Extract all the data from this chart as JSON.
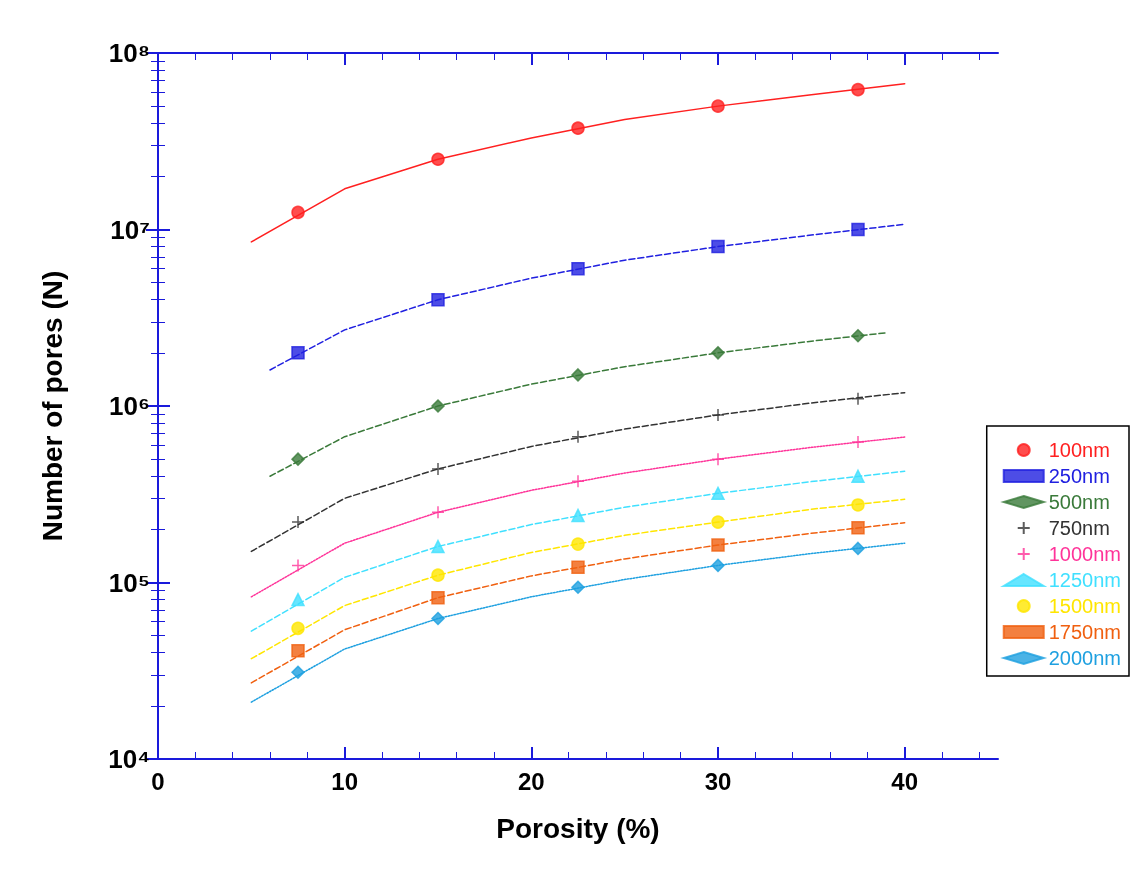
{
  "chart_data": {
    "type": "scatter",
    "xlabel": "Porosity (%)",
    "ylabel": "Number of pores (N)",
    "log": "y",
    "xlim": [
      0,
      45
    ],
    "xticks": [
      0,
      10,
      20,
      30,
      40
    ],
    "ylim": [
      10000,
      100000000
    ],
    "yticks": [
      {
        "value": 10000,
        "label": "10⁴"
      },
      {
        "value": 100000,
        "label": "10⁵"
      },
      {
        "value": 1000000,
        "label": "10⁶"
      },
      {
        "value": 10000000,
        "label": "10⁷"
      },
      {
        "value": 100000000,
        "label": "10⁸"
      }
    ],
    "grid": false,
    "legend": "right",
    "series": [
      {
        "name": "100nm",
        "color": "#ff2020",
        "marker": "circle",
        "x": [
          7.5,
          15,
          22.5,
          30,
          37.5
        ],
        "values": [
          12500000,
          25000000,
          37500000,
          50000000,
          62000000
        ]
      },
      {
        "name": "250nm",
        "color": "#2020e0",
        "marker": "square",
        "x": [
          7.5,
          15,
          22.5,
          30,
          37.5
        ],
        "values": [
          2000000,
          4000000,
          6000000,
          8000000,
          10000000
        ]
      },
      {
        "name": "500nm",
        "color": "#3a7a3a",
        "marker": "diamond",
        "x": [
          7.5,
          15,
          22.5,
          30,
          37.5
        ],
        "values": [
          500000,
          1000000,
          1500000,
          2000000,
          2500000
        ]
      },
      {
        "name": "750nm",
        "color": "#333333",
        "marker": "cross",
        "x": [
          7.5,
          15,
          22.5,
          30,
          37.5
        ],
        "values": [
          220000,
          440000,
          670000,
          890000,
          1100000
        ]
      },
      {
        "name": "1000nm",
        "color": "#ff3399",
        "marker": "cross",
        "x": [
          7.5,
          15,
          22.5,
          30,
          37.5
        ],
        "values": [
          125000,
          250000,
          375000,
          500000,
          625000
        ]
      },
      {
        "name": "1250nm",
        "color": "#40e0ff",
        "marker": "triangle",
        "x": [
          7.5,
          15,
          22.5,
          30,
          37.5
        ],
        "values": [
          80000,
          160000,
          240000,
          320000,
          400000
        ]
      },
      {
        "name": "1500nm",
        "color": "#ffe600",
        "marker": "circle",
        "x": [
          7.5,
          15,
          22.5,
          30,
          37.5
        ],
        "values": [
          55000,
          110000,
          165000,
          220000,
          275000
        ]
      },
      {
        "name": "1750nm",
        "color": "#f06010",
        "marker": "square",
        "x": [
          7.5,
          15,
          22.5,
          30,
          37.5
        ],
        "values": [
          41000,
          82000,
          122000,
          163000,
          204000
        ]
      },
      {
        "name": "2000nm",
        "color": "#1ea0e0",
        "marker": "diamond",
        "x": [
          7.5,
          15,
          22.5,
          30,
          37.5
        ],
        "values": [
          31000,
          62500,
          94000,
          125000,
          156000
        ]
      },
      {
        "type": "line",
        "color": "#ff2020",
        "line_style": "solid",
        "x": [
          5,
          10,
          15,
          20,
          25,
          30,
          35,
          40
        ],
        "values": [
          8500000,
          17000000,
          25000000,
          33000000,
          42000000,
          50000000,
          58000000,
          67000000
        ]
      },
      {
        "type": "line",
        "color": "#2020e0",
        "line_style": "dashed",
        "x": [
          6,
          10,
          15,
          20,
          25,
          30,
          35,
          40
        ],
        "values": [
          1600000,
          2700000,
          4000000,
          5300000,
          6700000,
          8000000,
          9300000,
          10700000
        ]
      },
      {
        "type": "line",
        "color": "#3a7a3a",
        "line_style": "dashed",
        "x": [
          6,
          10,
          15,
          20,
          25,
          30,
          35,
          39
        ],
        "values": [
          400000,
          670000,
          1000000,
          1330000,
          1670000,
          2000000,
          2330000,
          2600000
        ]
      },
      {
        "type": "line",
        "color": "#333333",
        "line_style": "dashed",
        "x": [
          5,
          10,
          15,
          20,
          25,
          30,
          35,
          40
        ],
        "values": [
          150000,
          300000,
          440000,
          590000,
          740000,
          890000,
          1040000,
          1190000
        ]
      },
      {
        "type": "line",
        "color": "#ff3399",
        "line_style": "dotted",
        "x": [
          5,
          10,
          15,
          20,
          25,
          30,
          35,
          40
        ],
        "values": [
          83000,
          167000,
          250000,
          333000,
          417000,
          500000,
          583000,
          667000
        ]
      },
      {
        "type": "line",
        "color": "#40e0ff",
        "line_style": "dashed",
        "x": [
          5,
          10,
          15,
          20,
          25,
          30,
          35,
          40
        ],
        "values": [
          53000,
          107000,
          160000,
          213000,
          267000,
          320000,
          373000,
          427000
        ]
      },
      {
        "type": "line",
        "color": "#ffe600",
        "line_style": "dashed",
        "x": [
          5,
          10,
          15,
          20,
          25,
          30,
          35,
          40
        ],
        "values": [
          37000,
          74000,
          110000,
          148000,
          185000,
          220000,
          260000,
          296000
        ]
      },
      {
        "type": "line",
        "color": "#f06010",
        "line_style": "dashed",
        "x": [
          5,
          10,
          15,
          20,
          25,
          30,
          35,
          40
        ],
        "values": [
          27000,
          54000,
          82000,
          109000,
          136000,
          163000,
          190000,
          218000
        ]
      },
      {
        "type": "line",
        "color": "#1ea0e0",
        "line_style": "dotted",
        "x": [
          5,
          10,
          15,
          20,
          25,
          30,
          35,
          40
        ],
        "values": [
          21000,
          42000,
          62500,
          83000,
          104000,
          125000,
          146000,
          167000
        ]
      }
    ]
  }
}
